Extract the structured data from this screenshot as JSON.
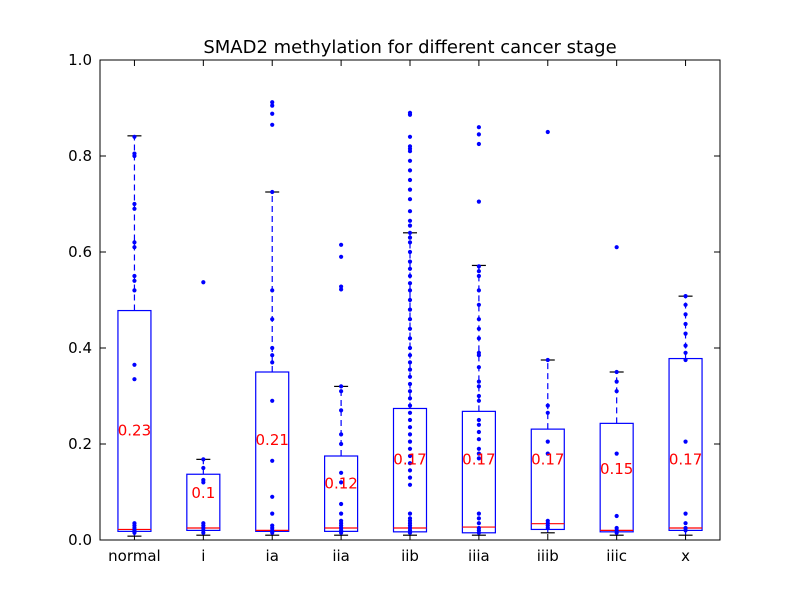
{
  "chart_data": {
    "type": "box",
    "title": "SMAD2 methylation for different cancer stage",
    "xlabel": "",
    "ylabel": "",
    "ylim": [
      0.0,
      1.0
    ],
    "yticks": [
      "0.0",
      "0.2",
      "0.4",
      "0.6",
      "0.8",
      "1.0"
    ],
    "grid": false,
    "colors": {
      "box": "#0000ff",
      "median": "#ff0000",
      "cap": "#000000",
      "label": "#ff0000"
    },
    "categories": [
      "normal",
      "i",
      "ia",
      "iia",
      "iib",
      "iiia",
      "iiib",
      "iiic",
      "x"
    ],
    "boxes": [
      {
        "category": "normal",
        "whisker_low": 0.008,
        "q1": 0.018,
        "median": 0.022,
        "q3": 0.478,
        "whisker_high": 0.842,
        "label": "0.23",
        "points": [
          0.84,
          0.805,
          0.8,
          0.7,
          0.69,
          0.62,
          0.61,
          0.55,
          0.54,
          0.52,
          0.365,
          0.335,
          0.035,
          0.03,
          0.025,
          0.02,
          0.015
        ]
      },
      {
        "category": "i",
        "whisker_low": 0.01,
        "q1": 0.02,
        "median": 0.025,
        "q3": 0.137,
        "whisker_high": 0.168,
        "label": "0.1",
        "points": [
          0.537,
          0.168,
          0.15,
          0.125,
          0.12,
          0.035,
          0.03,
          0.025,
          0.02,
          0.015
        ]
      },
      {
        "category": "ia",
        "whisker_low": 0.01,
        "q1": 0.018,
        "median": 0.02,
        "q3": 0.35,
        "whisker_high": 0.725,
        "label": "0.21",
        "points": [
          0.912,
          0.905,
          0.888,
          0.865,
          0.725,
          0.52,
          0.46,
          0.4,
          0.385,
          0.37,
          0.29,
          0.165,
          0.09,
          0.055,
          0.03,
          0.025,
          0.02,
          0.015
        ]
      },
      {
        "category": "iia",
        "whisker_low": 0.01,
        "q1": 0.018,
        "median": 0.025,
        "q3": 0.175,
        "whisker_high": 0.32,
        "label": "0.12",
        "points": [
          0.615,
          0.59,
          0.528,
          0.522,
          0.32,
          0.31,
          0.27,
          0.22,
          0.2,
          0.14,
          0.12,
          0.075,
          0.055,
          0.04,
          0.035,
          0.03,
          0.025,
          0.02,
          0.015
        ]
      },
      {
        "category": "iib",
        "whisker_low": 0.01,
        "q1": 0.017,
        "median": 0.025,
        "q3": 0.274,
        "whisker_high": 0.64,
        "label": "0.17",
        "points": [
          0.89,
          0.886,
          0.84,
          0.82,
          0.815,
          0.81,
          0.79,
          0.77,
          0.75,
          0.73,
          0.71,
          0.685,
          0.665,
          0.655,
          0.64,
          0.63,
          0.62,
          0.6,
          0.58,
          0.565,
          0.55,
          0.535,
          0.52,
          0.5,
          0.48,
          0.46,
          0.44,
          0.42,
          0.4,
          0.385,
          0.37,
          0.355,
          0.34,
          0.325,
          0.31,
          0.295,
          0.28,
          0.265,
          0.25,
          0.235,
          0.22,
          0.205,
          0.19,
          0.175,
          0.16,
          0.145,
          0.13,
          0.115,
          0.055,
          0.045,
          0.04,
          0.035,
          0.03,
          0.025,
          0.02,
          0.015
        ]
      },
      {
        "category": "iiia",
        "whisker_low": 0.01,
        "q1": 0.015,
        "median": 0.027,
        "q3": 0.268,
        "whisker_high": 0.572,
        "label": "0.17",
        "points": [
          0.86,
          0.845,
          0.825,
          0.705,
          0.57,
          0.56,
          0.55,
          0.52,
          0.49,
          0.46,
          0.44,
          0.42,
          0.39,
          0.385,
          0.36,
          0.33,
          0.32,
          0.3,
          0.29,
          0.25,
          0.24,
          0.225,
          0.21,
          0.19,
          0.18,
          0.17,
          0.055,
          0.045,
          0.035,
          0.025,
          0.02,
          0.015
        ]
      },
      {
        "category": "iiib",
        "whisker_low": 0.015,
        "q1": 0.022,
        "median": 0.034,
        "q3": 0.231,
        "whisker_high": 0.375,
        "label": "0.17",
        "points": [
          0.85,
          0.375,
          0.28,
          0.265,
          0.205,
          0.18,
          0.04,
          0.035,
          0.03,
          0.025
        ]
      },
      {
        "category": "iiic",
        "whisker_low": 0.01,
        "q1": 0.017,
        "median": 0.02,
        "q3": 0.243,
        "whisker_high": 0.35,
        "label": "0.15",
        "points": [
          0.61,
          0.35,
          0.33,
          0.31,
          0.18,
          0.05,
          0.025,
          0.02,
          0.015
        ]
      },
      {
        "category": "x",
        "whisker_low": 0.01,
        "q1": 0.02,
        "median": 0.025,
        "q3": 0.378,
        "whisker_high": 0.508,
        "label": "0.17",
        "points": [
          0.508,
          0.49,
          0.47,
          0.45,
          0.43,
          0.405,
          0.39,
          0.375,
          0.205,
          0.055,
          0.035,
          0.025,
          0.02
        ]
      }
    ]
  }
}
